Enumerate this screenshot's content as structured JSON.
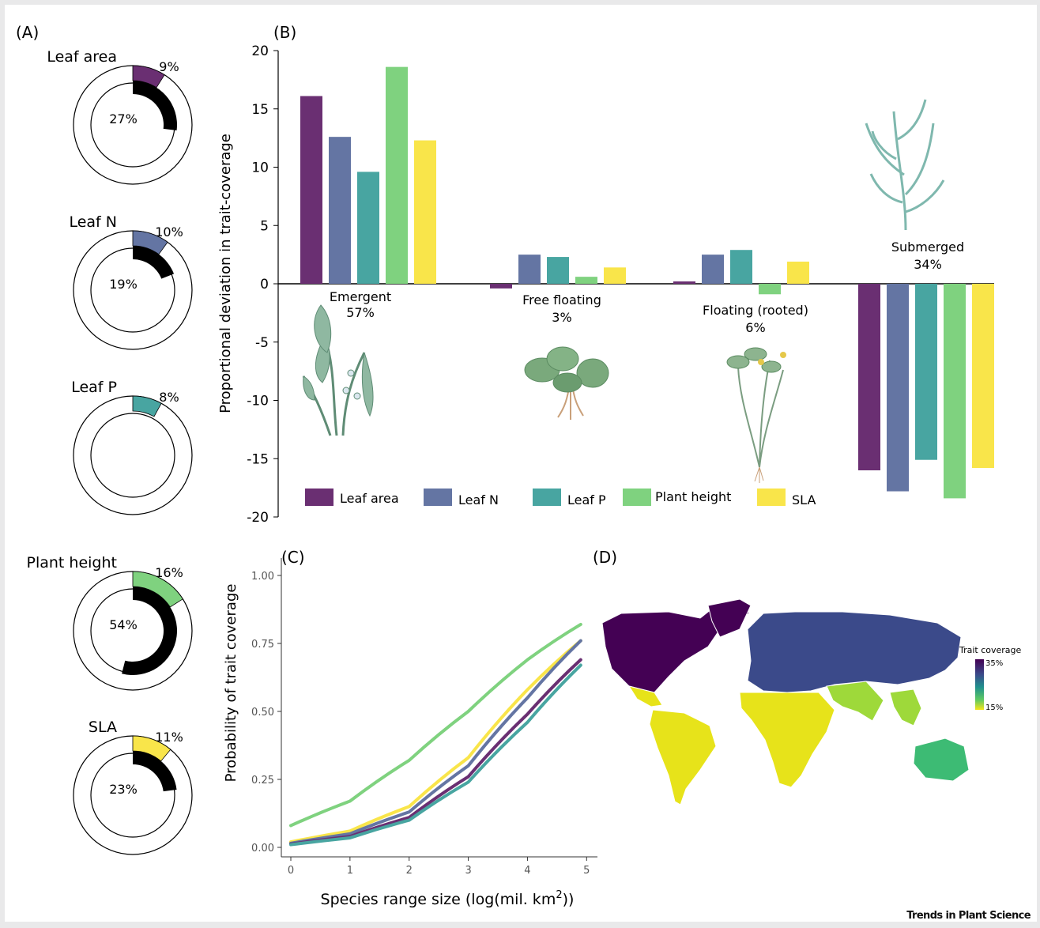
{
  "colors": {
    "leaf_area": "#6a2f72",
    "leaf_n": "#6475a3",
    "leaf_p": "#48a5a1",
    "plant_height": "#7fd27f",
    "sla": "#f9e54a"
  },
  "panel_labels": {
    "a": "(A)",
    "b": "(B)",
    "c": "(C)",
    "d": "(D)"
  },
  "publisher": "Trends in Plant Science",
  "chart_data": [
    {
      "type": "pie",
      "panel": "A",
      "rings": [
        {
          "trait": "Leaf area",
          "outer_pct": 9,
          "inner_pct": 27,
          "outer_label": "9%",
          "inner_label": "27%",
          "color": "#6a2f72"
        },
        {
          "trait": "Leaf N",
          "outer_pct": 10,
          "inner_pct": 19,
          "outer_label": "10%",
          "inner_label": "19%",
          "color": "#6475a3"
        },
        {
          "trait": "Leaf P",
          "outer_pct": 8,
          "inner_pct": null,
          "outer_label": "8%",
          "inner_label": "",
          "color": "#48a5a1"
        },
        {
          "trait": "Plant height",
          "outer_pct": 16,
          "inner_pct": 54,
          "outer_label": "16%",
          "inner_label": "54%",
          "color": "#7fd27f"
        },
        {
          "trait": "SLA",
          "outer_pct": 11,
          "inner_pct": 23,
          "outer_label": "11%",
          "inner_label": "23%",
          "color": "#f9e54a"
        }
      ]
    },
    {
      "type": "bar",
      "panel": "B",
      "ylabel": "Proportional deviation in trait-coverage",
      "ylim": [
        -20,
        20
      ],
      "yticks": [
        20,
        15,
        10,
        5,
        0,
        -5,
        -10,
        -15,
        -20
      ],
      "ytick_labels": [
        "20",
        "15",
        "10",
        "5",
        "0",
        "-5",
        "-10",
        "-15",
        "-20"
      ],
      "categories": [
        {
          "name": "Emergent",
          "pct": "57%"
        },
        {
          "name": "Free floating",
          "pct": "3%"
        },
        {
          "name": "Floating (rooted)",
          "pct": "6%"
        },
        {
          "name": "Submerged",
          "pct": "34%"
        }
      ],
      "series": [
        {
          "name": "Leaf area",
          "values": [
            16.1,
            -0.4,
            0.2,
            -16.0
          ]
        },
        {
          "name": "Leaf N",
          "values": [
            12.6,
            2.5,
            2.5,
            -17.8
          ]
        },
        {
          "name": "Leaf P",
          "values": [
            9.6,
            2.3,
            2.9,
            -15.1
          ]
        },
        {
          "name": "Plant height",
          "values": [
            18.6,
            0.6,
            -0.9,
            -18.4
          ]
        },
        {
          "name": "SLA",
          "values": [
            12.3,
            1.4,
            1.9,
            -15.8
          ]
        }
      ],
      "legend": "bottom"
    },
    {
      "type": "line",
      "panel": "C",
      "xlabel": "Species range size (log(mil. km",
      "xlabel_sup": "2",
      "xlabel_end": "))",
      "ylabel": "Probability of trait coverage",
      "xlim": [
        0,
        5
      ],
      "ylim": [
        0,
        1
      ],
      "xticks": [
        0,
        1,
        2,
        3,
        4,
        5
      ],
      "xtick_labels": [
        "0",
        "1",
        "2",
        "3",
        "4",
        "5"
      ],
      "yticks": [
        0,
        0.25,
        0.5,
        0.75,
        1.0
      ],
      "ytick_labels": [
        "0.00",
        "0.25",
        "0.50",
        "0.75",
        "1.00"
      ],
      "series": [
        {
          "trait": "Plant height",
          "x": [
            0,
            1,
            2,
            3,
            4,
            4.9
          ],
          "y": [
            0.08,
            0.17,
            0.32,
            0.5,
            0.69,
            0.82
          ]
        },
        {
          "trait": "SLA",
          "x": [
            0,
            1,
            2,
            3,
            4,
            4.9
          ],
          "y": [
            0.02,
            0.06,
            0.15,
            0.33,
            0.58,
            0.76
          ]
        },
        {
          "trait": "Leaf N",
          "x": [
            0,
            1,
            2,
            3,
            4,
            4.9
          ],
          "y": [
            0.015,
            0.05,
            0.13,
            0.3,
            0.55,
            0.76
          ]
        },
        {
          "trait": "Leaf area",
          "x": [
            0,
            1,
            2,
            3,
            4,
            4.9
          ],
          "y": [
            0.012,
            0.04,
            0.11,
            0.26,
            0.49,
            0.69
          ]
        },
        {
          "trait": "Leaf P",
          "x": [
            0,
            1,
            2,
            3,
            4,
            4.9
          ],
          "y": [
            0.01,
            0.035,
            0.1,
            0.24,
            0.46,
            0.67
          ]
        }
      ]
    },
    {
      "type": "heatmap",
      "panel": "D",
      "legend_title": "Trait coverage",
      "legend_max": "35%",
      "legend_min": "15%",
      "colors": {
        "high": "#440154",
        "mid_high": "#3b4a8a",
        "mid": "#3dbb74",
        "mid_low": "#9ed93a",
        "low": "#e7e31a"
      }
    }
  ]
}
